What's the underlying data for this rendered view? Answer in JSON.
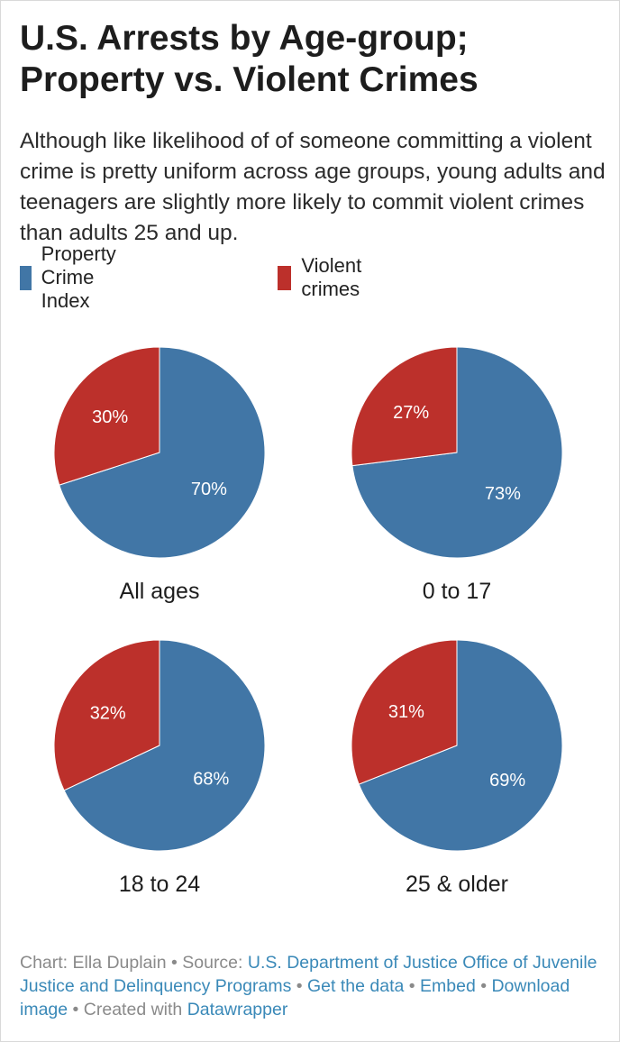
{
  "header": {
    "title_line1": "U.S. Arrests by Age-group;",
    "title_line2": "Property vs. Violent Crimes",
    "subtitle": "Although like likelihood of of someone committing a violent crime is pretty uniform across age groups, young adults and teenagers are slightly more likely to commit violent crimes than adults 25 and up."
  },
  "legend": {
    "placement": "top-left",
    "items": [
      {
        "label": "Property Crime Index",
        "color": "#4176a6"
      },
      {
        "label": "Violent crimes",
        "color": "#bc302b"
      }
    ]
  },
  "chart_data": {
    "type": "pie",
    "series_names": [
      "Property Crime Index",
      "Violent crimes"
    ],
    "colors": [
      "#4176a6",
      "#bc302b"
    ],
    "charts": [
      {
        "title": "All ages",
        "values": [
          70,
          30
        ],
        "labels": [
          "70%",
          "30%"
        ]
      },
      {
        "title": "0 to 17",
        "values": [
          73,
          27
        ],
        "labels": [
          "73%",
          "27%"
        ]
      },
      {
        "title": "18 to 24",
        "values": [
          68,
          32
        ],
        "labels": [
          "68%",
          "32%"
        ]
      },
      {
        "title": "25 & older",
        "values": [
          69,
          31
        ],
        "labels": [
          "69%",
          "31%"
        ]
      }
    ]
  },
  "footer": {
    "chart_prefix": "Chart: Ella Duplain • Source: ",
    "source_link": "U.S. Department of Justice Office of Juvenile Justice and Delinquency Programs",
    "sep1": " • ",
    "get_data": "Get the data",
    "sep2": " • ",
    "embed": "Embed",
    "sep3": " • ",
    "download": "Download image",
    "created_prefix": " • Created with ",
    "datawrapper": "Datawrapper"
  }
}
